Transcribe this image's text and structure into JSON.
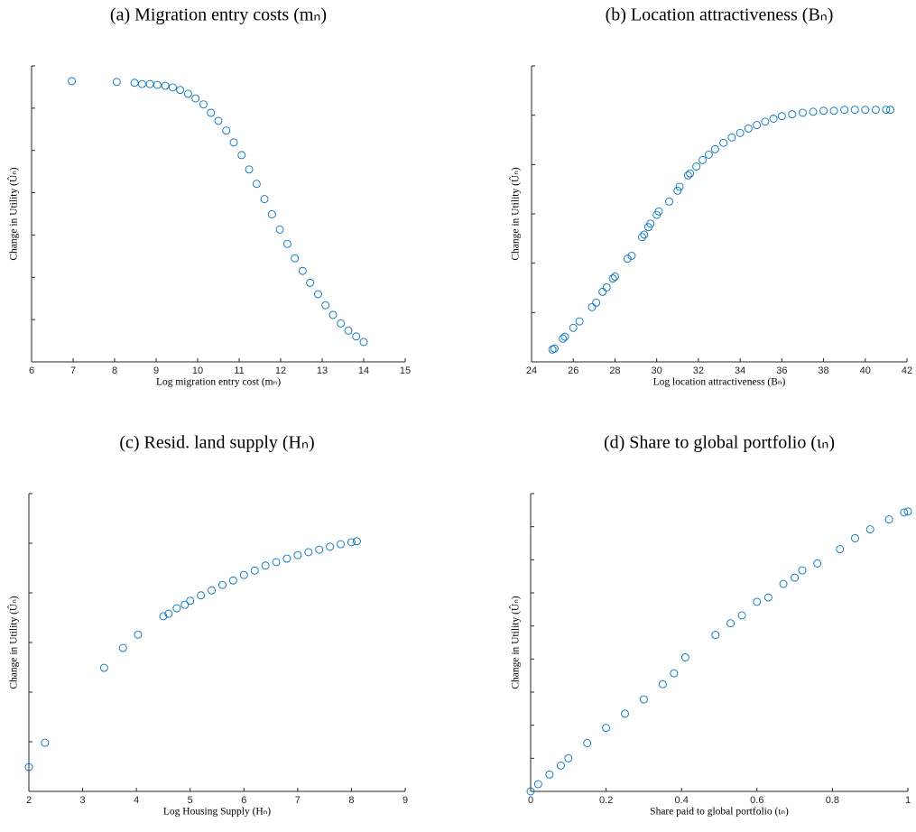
{
  "chart_data": [
    {
      "type": "scatter",
      "title": "(a) Migration entry costs (mₙ)",
      "xlabel": "Log migration entry cost (mₙ)",
      "ylabel": "Change in Utility (Ûₙ)",
      "color": "#0072BD",
      "x": [
        6.97,
        8.05,
        8.48,
        8.66,
        8.85,
        9.03,
        9.22,
        9.4,
        9.58,
        9.77,
        9.95,
        10.14,
        10.32,
        10.5,
        10.69,
        10.87,
        11.06,
        11.24,
        11.42,
        11.61,
        11.79,
        11.98,
        12.16,
        12.34,
        12.53,
        12.71,
        12.9,
        13.08,
        13.26,
        13.45,
        13.63,
        13.82,
        14.0
      ],
      "values": [
        6.64,
        6.62,
        6.6,
        6.57,
        6.57,
        6.55,
        6.53,
        6.49,
        6.43,
        6.34,
        6.23,
        6.09,
        5.89,
        5.7,
        5.47,
        5.19,
        4.89,
        4.55,
        4.21,
        3.85,
        3.49,
        3.13,
        2.79,
        2.45,
        2.15,
        1.87,
        1.6,
        1.34,
        1.11,
        0.91,
        0.74,
        0.6,
        0.47
      ],
      "xlim": [
        6,
        15
      ],
      "xticks": [
        6,
        7,
        8,
        9,
        10,
        11,
        12,
        13,
        14,
        15
      ],
      "ylim": [
        0,
        7
      ],
      "yticks": [
        1,
        2,
        3,
        4,
        5,
        6,
        7
      ]
    },
    {
      "type": "scatter",
      "title": "(b) Location attractiveness (Bₙ)",
      "xlabel": "Log location attractiveness (Bₙ)",
      "ylabel": "Change in Utility (Ûₙ)",
      "color": "#0072BD",
      "x": [
        25.0,
        25.1,
        25.5,
        25.6,
        26.0,
        26.3,
        26.9,
        27.1,
        27.4,
        27.6,
        27.9,
        28.0,
        28.6,
        28.8,
        29.3,
        29.4,
        29.6,
        29.7,
        30.0,
        30.1,
        30.6,
        31.0,
        31.1,
        31.5,
        31.6,
        31.9,
        32.2,
        32.5,
        32.8,
        33.2,
        33.6,
        34.0,
        34.4,
        34.8,
        35.2,
        35.6,
        36.0,
        36.5,
        37.0,
        37.5,
        38.0,
        38.5,
        39.0,
        39.5,
        40.0,
        40.5,
        41.0,
        41.2
      ],
      "values": [
        0.25,
        0.27,
        0.47,
        0.51,
        0.69,
        0.82,
        1.11,
        1.2,
        1.42,
        1.51,
        1.69,
        1.73,
        2.09,
        2.15,
        2.53,
        2.58,
        2.73,
        2.8,
        2.98,
        3.05,
        3.25,
        3.47,
        3.55,
        3.78,
        3.82,
        3.96,
        4.09,
        4.2,
        4.31,
        4.44,
        4.55,
        4.64,
        4.73,
        4.8,
        4.87,
        4.93,
        4.98,
        5.02,
        5.05,
        5.07,
        5.09,
        5.09,
        5.11,
        5.11,
        5.11,
        5.11,
        5.11,
        5.11
      ],
      "xlim": [
        24,
        42
      ],
      "xticks": [
        24,
        26,
        28,
        30,
        32,
        34,
        36,
        38,
        40,
        42
      ],
      "ylim": [
        0,
        6
      ],
      "yticks": [
        1,
        2,
        3,
        4,
        5,
        6
      ]
    },
    {
      "type": "scatter",
      "title": "(c) Resid. land supply (Hₙ)",
      "xlabel": "Log Housing Supply (Hₙ)",
      "ylabel": "Change in Utility (Ûₙ)",
      "color": "#0072BD",
      "x": [
        2.0,
        2.3,
        3.4,
        3.75,
        4.03,
        4.5,
        4.6,
        4.75,
        4.9,
        5.0,
        5.2,
        5.4,
        5.6,
        5.8,
        6.0,
        6.2,
        6.4,
        6.6,
        6.8,
        7.0,
        7.2,
        7.4,
        7.6,
        7.8,
        8.0,
        8.1
      ],
      "values": [
        0.49,
        0.98,
        2.49,
        2.89,
        3.16,
        3.53,
        3.58,
        3.69,
        3.76,
        3.84,
        3.95,
        4.05,
        4.16,
        4.25,
        4.36,
        4.45,
        4.55,
        4.62,
        4.69,
        4.76,
        4.82,
        4.87,
        4.93,
        4.98,
        5.02,
        5.04
      ],
      "xlim": [
        2,
        9
      ],
      "xticks": [
        2,
        3,
        4,
        5,
        6,
        7,
        8,
        9
      ],
      "ylim": [
        0,
        6
      ],
      "yticks": [
        1,
        2,
        3,
        4,
        5,
        6
      ]
    },
    {
      "type": "scatter",
      "title": "(d) Share to global portfolio (ιₙ)",
      "xlabel": "Share paid to global portfolio (ιₙ)",
      "ylabel": "Change in Utility (Ûₙ)",
      "color": "#0072BD",
      "x": [
        0,
        0.02,
        0.05,
        0.08,
        0.1,
        0.15,
        0.2,
        0.25,
        0.3,
        0.35,
        0.38,
        0.41,
        0.49,
        0.53,
        0.56,
        0.6,
        0.63,
        0.67,
        0.7,
        0.72,
        0.76,
        0.82,
        0.86,
        0.9,
        0.95,
        0.99,
        1.0
      ],
      "values": [
        0,
        0.22,
        0.51,
        0.78,
        1.0,
        1.46,
        1.92,
        2.35,
        2.78,
        3.24,
        3.57,
        4.05,
        4.73,
        5.08,
        5.32,
        5.73,
        5.86,
        6.27,
        6.46,
        6.68,
        6.89,
        7.32,
        7.65,
        7.92,
        8.22,
        8.43,
        8.46
      ],
      "xlim": [
        0,
        1
      ],
      "xticks": [
        0,
        0.2,
        0.4,
        0.6,
        0.8,
        1
      ],
      "ylim": [
        0,
        9
      ],
      "yticks": [
        1,
        2,
        3,
        4,
        5,
        6,
        7,
        8,
        9
      ]
    }
  ]
}
